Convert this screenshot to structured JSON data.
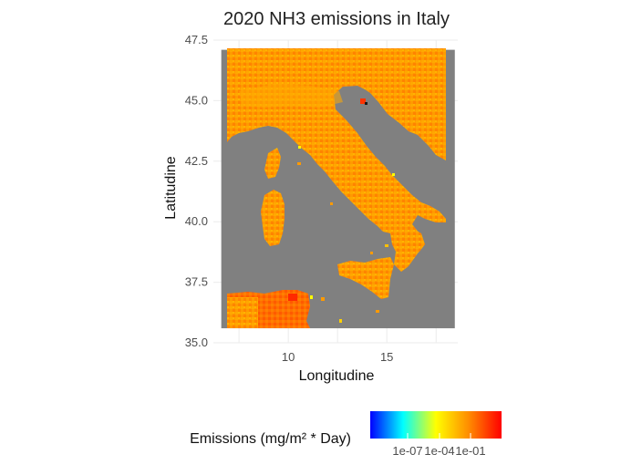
{
  "title": "2020 NH3 emissions in Italy",
  "x_axis": {
    "label": "Longitudine",
    "range": [
      6.2,
      18.6
    ],
    "ticks": [
      {
        "value": 10,
        "label": "10"
      },
      {
        "value": 15,
        "label": "15"
      }
    ]
  },
  "y_axis": {
    "label": "Latitudine",
    "range": [
      35.0,
      47.5
    ],
    "ticks": [
      {
        "value": 35.0,
        "label": "35.0"
      },
      {
        "value": 37.5,
        "label": "37.5"
      },
      {
        "value": 40.0,
        "label": "40.0"
      },
      {
        "value": 42.5,
        "label": "42.5"
      },
      {
        "value": 45.0,
        "label": "45.0"
      },
      {
        "value": 47.5,
        "label": "47.5"
      }
    ]
  },
  "raster_extent": {
    "lon": [
      6.6,
      18.45
    ],
    "lat": [
      35.6,
      47.1
    ]
  },
  "colors": {
    "sea": "#808080",
    "land_base": "#ff8c00",
    "land_light": "#ffb000",
    "hotspot": "#ff2a00",
    "panel_bg": "#ffffff",
    "grid": "#ebebeb"
  },
  "legend": {
    "title": "Emissions (mg/m² * Day)",
    "gradient": [
      "#0000ff",
      "#00ffff",
      "#ffff00",
      "#ff8c00",
      "#ff0000"
    ],
    "tick_labels": [
      "1e-07",
      "1e-04",
      "1e-01"
    ]
  }
}
